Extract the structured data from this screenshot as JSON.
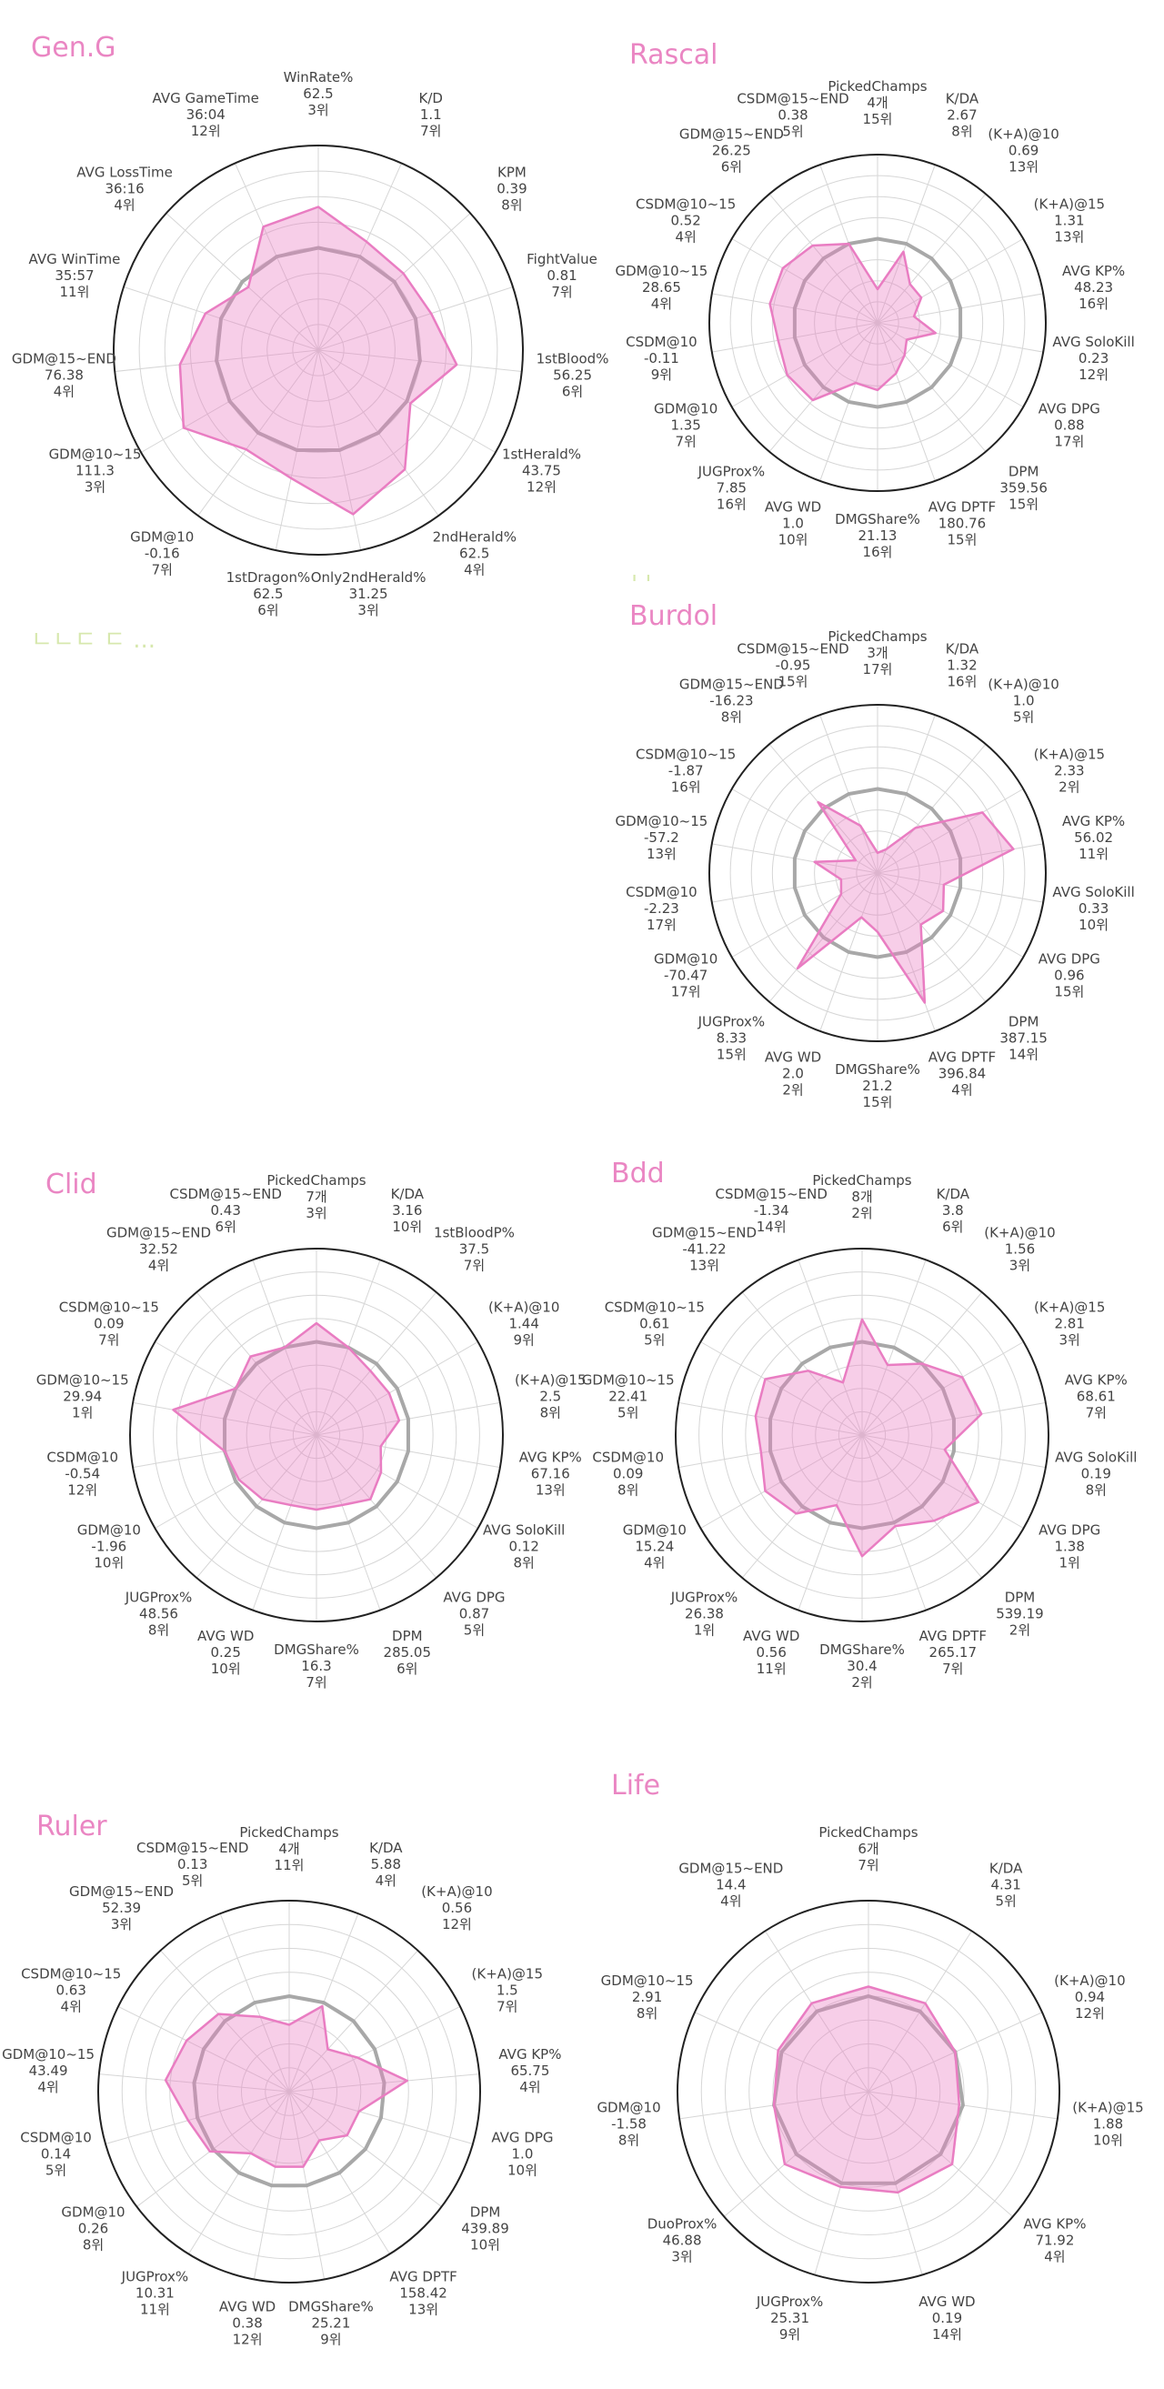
{
  "chart_data": [
    {
      "type": "radar",
      "title": "Gen.G",
      "range": [
        0,
        1
      ],
      "grid": true,
      "colors": {
        "player": "#e97dc2",
        "fill": "rgba(233,125,194,0.38)",
        "average": "#a8a8a8",
        "grid": "#d6d6d6",
        "outer": "#222222"
      },
      "axes": [
        {
          "label": "WinRate%",
          "value": "62.5",
          "rank": "3위",
          "norm": 0.7
        },
        {
          "label": "K/D",
          "value": "1.1",
          "rank": "7위",
          "norm": 0.58
        },
        {
          "label": "KPM",
          "value": "0.39",
          "rank": "8위",
          "norm": 0.56
        },
        {
          "label": "FightValue",
          "value": "0.81",
          "rank": "7위",
          "norm": 0.58
        },
        {
          "label": "1stBlood%",
          "value": "56.25",
          "rank": "6위",
          "norm": 0.68
        },
        {
          "label": "1stHerald%",
          "value": "43.75",
          "rank": "12위",
          "norm": 0.52
        },
        {
          "label": "2ndHerald%",
          "value": "62.5",
          "rank": "4위",
          "norm": 0.72
        },
        {
          "label": "Only2ndHerald%",
          "value": "31.25",
          "rank": "3위",
          "norm": 0.82
        },
        {
          "label": "1stDragon%",
          "value": "62.5",
          "rank": "6위",
          "norm": 0.64
        },
        {
          "label": "GDM@10",
          "value": "-0.16",
          "rank": "7위",
          "norm": 0.6
        },
        {
          "label": "GDM@10~15",
          "value": "111.3",
          "rank": "3위",
          "norm": 0.76
        },
        {
          "label": "GDM@15~END",
          "value": "76.38",
          "rank": "4위",
          "norm": 0.68
        },
        {
          "label": "AVG WinTime",
          "value": "35:57",
          "rank": "11위",
          "norm": 0.58
        },
        {
          "label": "AVG LossTime",
          "value": "36:16",
          "rank": "4위",
          "norm": 0.46
        },
        {
          "label": "AVG GameTime",
          "value": "36:04",
          "rank": "12위",
          "norm": 0.66
        }
      ]
    },
    {
      "type": "radar",
      "title": "Rascal",
      "range": [
        0,
        1
      ],
      "grid": true,
      "colors": {
        "player": "#e97dc2",
        "fill": "rgba(233,125,194,0.38)",
        "average": "#a8a8a8",
        "grid": "#d6d6d6",
        "outer": "#222222"
      },
      "axes": [
        {
          "label": "PickedChamps",
          "value": "4개",
          "rank": "15위",
          "norm": 0.2
        },
        {
          "label": "K/DA",
          "value": "2.67",
          "rank": "8위",
          "norm": 0.45
        },
        {
          "label": "(K+A)@10",
          "value": "0.69",
          "rank": "13위",
          "norm": 0.3
        },
        {
          "label": "(K+A)@15",
          "value": "1.31",
          "rank": "13위",
          "norm": 0.3
        },
        {
          "label": "AVG KP%",
          "value": "48.23",
          "rank": "16위",
          "norm": 0.22
        },
        {
          "label": "AVG SoloKill",
          "value": "0.23",
          "rank": "12위",
          "norm": 0.35
        },
        {
          "label": "AVG DPG",
          "value": "0.88",
          "rank": "17위",
          "norm": 0.2
        },
        {
          "label": "DPM",
          "value": "359.56",
          "rank": "15위",
          "norm": 0.25
        },
        {
          "label": "AVG DPTF",
          "value": "180.76",
          "rank": "15위",
          "norm": 0.32
        },
        {
          "label": "DMGShare%",
          "value": "21.13",
          "rank": "16위",
          "norm": 0.4
        },
        {
          "label": "AVG WD",
          "value": "1.0",
          "rank": "10위",
          "norm": 0.38
        },
        {
          "label": "JUGProx%",
          "value": "7.85",
          "rank": "16위",
          "norm": 0.6
        },
        {
          "label": "GDM@10",
          "value": "1.35",
          "rank": "7위",
          "norm": 0.62
        },
        {
          "label": "CSDM@10",
          "value": "-0.11",
          "rank": "9위",
          "norm": 0.6
        },
        {
          "label": "GDM@10~15",
          "value": "28.65",
          "rank": "4위",
          "norm": 0.65
        },
        {
          "label": "CSDM@10~15",
          "value": "0.52",
          "rank": "4위",
          "norm": 0.65
        },
        {
          "label": "GDM@15~END",
          "value": "26.25",
          "rank": "6위",
          "norm": 0.6
        },
        {
          "label": "CSDM@15~END",
          "value": "0.38",
          "rank": "5위",
          "norm": 0.5
        }
      ]
    },
    {
      "type": "radar",
      "title": "Burdol",
      "range": [
        0,
        1
      ],
      "grid": true,
      "colors": {
        "player": "#e97dc2",
        "fill": "rgba(233,125,194,0.38)",
        "average": "#a8a8a8",
        "grid": "#d6d6d6",
        "outer": "#222222"
      },
      "axes": [
        {
          "label": "PickedChamps",
          "value": "3개",
          "rank": "17위",
          "norm": 0.12
        },
        {
          "label": "K/DA",
          "value": "1.32",
          "rank": "16위",
          "norm": 0.15
        },
        {
          "label": "(K+A)@10",
          "value": "1.0",
          "rank": "5위",
          "norm": 0.35
        },
        {
          "label": "(K+A)@15",
          "value": "2.33",
          "rank": "2위",
          "norm": 0.72
        },
        {
          "label": "AVG KP%",
          "value": "56.02",
          "rank": "11위",
          "norm": 0.82
        },
        {
          "label": "AVG SoloKill",
          "value": "0.33",
          "rank": "10위",
          "norm": 0.4
        },
        {
          "label": "AVG DPG",
          "value": "0.96",
          "rank": "15위",
          "norm": 0.45
        },
        {
          "label": "DPM",
          "value": "387.15",
          "rank": "14위",
          "norm": 0.4
        },
        {
          "label": "AVG DPTF",
          "value": "396.84",
          "rank": "4위",
          "norm": 0.82
        },
        {
          "label": "DMGShare%",
          "value": "21.2",
          "rank": "15위",
          "norm": 0.35
        },
        {
          "label": "AVG WD",
          "value": "2.0",
          "rank": "2위",
          "norm": 0.28
        },
        {
          "label": "JUGProx%",
          "value": "8.33",
          "rank": "15위",
          "norm": 0.74
        },
        {
          "label": "GDM@10",
          "value": "-70.47",
          "rank": "17위",
          "norm": 0.25
        },
        {
          "label": "CSDM@10",
          "value": "-2.23",
          "rank": "17위",
          "norm": 0.22
        },
        {
          "label": "GDM@10~15",
          "value": "-57.2",
          "rank": "13위",
          "norm": 0.38
        },
        {
          "label": "CSDM@10~15",
          "value": "-1.87",
          "rank": "16위",
          "norm": 0.15
        },
        {
          "label": "GDM@15~END",
          "value": "-16.23",
          "rank": "8위",
          "norm": 0.55
        },
        {
          "label": "CSDM@15~END",
          "value": "-0.95",
          "rank": "15위",
          "norm": 0.3
        }
      ]
    },
    {
      "type": "radar",
      "title": "Clid",
      "range": [
        0,
        1
      ],
      "grid": true,
      "colors": {
        "player": "#e97dc2",
        "fill": "rgba(233,125,194,0.38)",
        "average": "#a8a8a8",
        "grid": "#d6d6d6",
        "outer": "#222222"
      },
      "axes": [
        {
          "label": "PickedChamps",
          "value": "7개",
          "rank": "3위",
          "norm": 0.6
        },
        {
          "label": "K/DA",
          "value": "3.16",
          "rank": "10위",
          "norm": 0.5
        },
        {
          "label": "1stBloodP%",
          "value": "37.5",
          "rank": "7위",
          "norm": 0.45
        },
        {
          "label": "(K+A)@10",
          "value": "1.44",
          "rank": "9위",
          "norm": 0.45
        },
        {
          "label": "(K+A)@15",
          "value": "2.5",
          "rank": "8위",
          "norm": 0.45
        },
        {
          "label": "AVG KP%",
          "value": "67.16",
          "rank": "13위",
          "norm": 0.35
        },
        {
          "label": "AVG SoloKill",
          "value": "0.12",
          "rank": "8위",
          "norm": 0.4
        },
        {
          "label": "AVG DPG",
          "value": "0.87",
          "rank": "5위",
          "norm": 0.45
        },
        {
          "label": "DPM",
          "value": "285.05",
          "rank": "6위",
          "norm": 0.4
        },
        {
          "label": "DMGShare%",
          "value": "16.3",
          "rank": "7위",
          "norm": 0.4
        },
        {
          "label": "AVG WD",
          "value": "0.25",
          "rank": "10위",
          "norm": 0.4
        },
        {
          "label": "JUGProx%",
          "value": "48.56",
          "rank": "8위",
          "norm": 0.45
        },
        {
          "label": "GDM@10",
          "value": "-1.96",
          "rank": "10위",
          "norm": 0.48
        },
        {
          "label": "CSDM@10",
          "value": "-0.54",
          "rank": "12위",
          "norm": 0.5
        },
        {
          "label": "GDM@10~15",
          "value": "29.94",
          "rank": "1위",
          "norm": 0.78
        },
        {
          "label": "CSDM@10~15",
          "value": "0.09",
          "rank": "7위",
          "norm": 0.5
        },
        {
          "label": "GDM@15~END",
          "value": "32.52",
          "rank": "4위",
          "norm": 0.55
        },
        {
          "label": "CSDM@15~END",
          "value": "0.43",
          "rank": "6위",
          "norm": 0.5
        }
      ]
    },
    {
      "type": "radar",
      "title": "Bdd",
      "range": [
        0,
        1
      ],
      "grid": true,
      "colors": {
        "player": "#e97dc2",
        "fill": "rgba(233,125,194,0.38)",
        "average": "#a8a8a8",
        "grid": "#d6d6d6",
        "outer": "#222222"
      },
      "axes": [
        {
          "label": "PickedChamps",
          "value": "8개",
          "rank": "2위",
          "norm": 0.62
        },
        {
          "label": "K/DA",
          "value": "3.8",
          "rank": "6위",
          "norm": 0.4
        },
        {
          "label": "(K+A)@10",
          "value": "1.56",
          "rank": "3위",
          "norm": 0.5
        },
        {
          "label": "(K+A)@15",
          "value": "2.81",
          "rank": "3위",
          "norm": 0.62
        },
        {
          "label": "AVG KP%",
          "value": "68.61",
          "rank": "7위",
          "norm": 0.65
        },
        {
          "label": "AVG SoloKill",
          "value": "0.19",
          "rank": "8위",
          "norm": 0.45
        },
        {
          "label": "AVG DPG",
          "value": "1.38",
          "rank": "1위",
          "norm": 0.72
        },
        {
          "label": "DPM",
          "value": "539.19",
          "rank": "2위",
          "norm": 0.6
        },
        {
          "label": "AVG DPTF",
          "value": "265.17",
          "rank": "7위",
          "norm": 0.52
        },
        {
          "label": "DMGShare%",
          "value": "30.4",
          "rank": "2위",
          "norm": 0.65
        },
        {
          "label": "AVG WD",
          "value": "0.56",
          "rank": "11위",
          "norm": 0.4
        },
        {
          "label": "JUGProx%",
          "value": "26.38",
          "rank": "1위",
          "norm": 0.55
        },
        {
          "label": "GDM@10",
          "value": "15.24",
          "rank": "4위",
          "norm": 0.6
        },
        {
          "label": "CSDM@10",
          "value": "0.09",
          "rank": "8위",
          "norm": 0.55
        },
        {
          "label": "GDM@10~15",
          "value": "22.41",
          "rank": "5위",
          "norm": 0.58
        },
        {
          "label": "CSDM@10~15",
          "value": "0.61",
          "rank": "5위",
          "norm": 0.6
        },
        {
          "label": "GDM@15~END",
          "value": "-41.22",
          "rank": "13위",
          "norm": 0.45
        },
        {
          "label": "CSDM@15~END",
          "value": "-1.34",
          "rank": "14위",
          "norm": 0.3
        }
      ]
    },
    {
      "type": "radar",
      "title": "Ruler",
      "range": [
        0,
        1
      ],
      "grid": true,
      "colors": {
        "player": "#e97dc2",
        "fill": "rgba(233,125,194,0.38)",
        "average": "#a8a8a8",
        "grid": "#d6d6d6",
        "outer": "#222222"
      },
      "axes": [
        {
          "label": "PickedChamps",
          "value": "4개",
          "rank": "11위",
          "norm": 0.35
        },
        {
          "label": "K/DA",
          "value": "5.88",
          "rank": "4위",
          "norm": 0.48
        },
        {
          "label": "(K+A)@10",
          "value": "0.56",
          "rank": "12위",
          "norm": 0.3
        },
        {
          "label": "(K+A)@15",
          "value": "1.5",
          "rank": "7위",
          "norm": 0.4
        },
        {
          "label": "AVG KP%",
          "value": "65.75",
          "rank": "4위",
          "norm": 0.62
        },
        {
          "label": "AVG DPG",
          "value": "1.0",
          "rank": "10위",
          "norm": 0.38
        },
        {
          "label": "DPM",
          "value": "439.89",
          "rank": "10위",
          "norm": 0.38
        },
        {
          "label": "AVG DPTF",
          "value": "158.42",
          "rank": "13위",
          "norm": 0.3
        },
        {
          "label": "DMGShare%",
          "value": "25.21",
          "rank": "9위",
          "norm": 0.4
        },
        {
          "label": "AVG WD",
          "value": "0.38",
          "rank": "12위",
          "norm": 0.4
        },
        {
          "label": "JUGProx%",
          "value": "10.31",
          "rank": "11위",
          "norm": 0.38
        },
        {
          "label": "GDM@10",
          "value": "0.26",
          "rank": "8위",
          "norm": 0.52
        },
        {
          "label": "CSDM@10",
          "value": "0.14",
          "rank": "5위",
          "norm": 0.55
        },
        {
          "label": "GDM@10~15",
          "value": "43.49",
          "rank": "4위",
          "norm": 0.65
        },
        {
          "label": "CSDM@10~15",
          "value": "0.63",
          "rank": "4위",
          "norm": 0.6
        },
        {
          "label": "GDM@15~END",
          "value": "52.39",
          "rank": "3위",
          "norm": 0.55
        },
        {
          "label": "CSDM@15~END",
          "value": "0.13",
          "rank": "5위",
          "norm": 0.42
        }
      ]
    },
    {
      "type": "radar",
      "title": "Life",
      "range": [
        0,
        1
      ],
      "grid": true,
      "colors": {
        "player": "#e97dc2",
        "fill": "rgba(233,125,194,0.38)",
        "average": "#a8a8a8",
        "grid": "#d6d6d6",
        "outer": "#222222"
      },
      "axes": [
        {
          "label": "PickedChamps",
          "value": "6개",
          "rank": "7위",
          "norm": 0.55
        },
        {
          "label": "K/DA",
          "value": "4.31",
          "rank": "5위",
          "norm": 0.55
        },
        {
          "label": "(K+A)@10",
          "value": "0.94",
          "rank": "12위",
          "norm": 0.5
        },
        {
          "label": "(K+A)@15",
          "value": "1.88",
          "rank": "10위",
          "norm": 0.48
        },
        {
          "label": "AVG KP%",
          "value": "71.92",
          "rank": "4위",
          "norm": 0.58
        },
        {
          "label": "AVG WD",
          "value": "0.19",
          "rank": "14위",
          "norm": 0.55
        },
        {
          "label": "JUGProx%",
          "value": "25.31",
          "rank": "9위",
          "norm": 0.52
        },
        {
          "label": "DuoProx%",
          "value": "46.88",
          "rank": "3위",
          "norm": 0.58
        },
        {
          "label": "GDM@10",
          "value": "-1.58",
          "rank": "8위",
          "norm": 0.5
        },
        {
          "label": "GDM@10~15",
          "value": "2.91",
          "rank": "8위",
          "norm": 0.52
        },
        {
          "label": "GDM@15~END",
          "value": "14.4",
          "rank": "4위",
          "norm": 0.55
        }
      ]
    }
  ],
  "avg_norm": 0.5
}
